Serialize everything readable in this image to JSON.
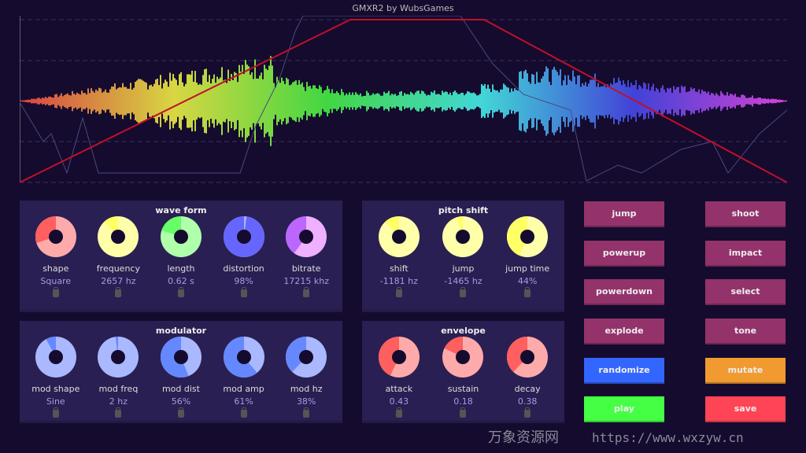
{
  "title": "GMXR2 by WubsGames",
  "panels": [
    {
      "id": "wave-form",
      "title": "wave form",
      "knobs": [
        {
          "label": "shape",
          "value": "Square",
          "fraction": 0.3,
          "color": "#ff5f5f",
          "light": "#ffaaaa"
        },
        {
          "label": "frequency",
          "value": "2657 hz",
          "fraction": 0.12,
          "color": "#ffff66",
          "light": "#ffffaa"
        },
        {
          "label": "length",
          "value": "0.62 s",
          "fraction": 0.2,
          "color": "#66ff66",
          "light": "#b0ffaa"
        },
        {
          "label": "distortion",
          "value": "98%",
          "fraction": 0.98,
          "color": "#6666ff",
          "light": "#aab0ff"
        },
        {
          "label": "bitrate",
          "value": "17215 khz",
          "fraction": 0.4,
          "color": "#bb66ff",
          "light": "#eeb0ff"
        }
      ]
    },
    {
      "id": "pitch-shift",
      "title": "pitch shift",
      "knobs": [
        {
          "label": "shift",
          "value": "-1181 hz",
          "fraction": 0.12,
          "color": "#ffff66",
          "light": "#ffffaa"
        },
        {
          "label": "jump",
          "value": "-1465 hz",
          "fraction": 0.05,
          "color": "#ffff66",
          "light": "#ffffaa"
        },
        {
          "label": "jump time",
          "value": "44%",
          "fraction": 0.44,
          "color": "#ffff66",
          "light": "#ffffaa"
        }
      ]
    },
    {
      "id": "modulator",
      "title": "modulator",
      "knobs": [
        {
          "label": "mod shape",
          "value": "Sine",
          "fraction": 0.08,
          "color": "#6688ff",
          "light": "#aab8ff"
        },
        {
          "label": "mod freq",
          "value": "2 hz",
          "fraction": 0.02,
          "color": "#6688ff",
          "light": "#aab8ff"
        },
        {
          "label": "mod dist",
          "value": "56%",
          "fraction": 0.56,
          "color": "#6688ff",
          "light": "#aab8ff"
        },
        {
          "label": "mod amp",
          "value": "61%",
          "fraction": 0.61,
          "color": "#6688ff",
          "light": "#aab8ff"
        },
        {
          "label": "mod hz",
          "value": "38%",
          "fraction": 0.38,
          "color": "#6688ff",
          "light": "#aab8ff"
        }
      ]
    },
    {
      "id": "envelope",
      "title": "envelope",
      "knobs": [
        {
          "label": "attack",
          "value": "0.43",
          "fraction": 0.43,
          "color": "#ff5f5f",
          "light": "#ffaaaa"
        },
        {
          "label": "sustain",
          "value": "0.18",
          "fraction": 0.18,
          "color": "#ff5f5f",
          "light": "#ffaaaa"
        },
        {
          "label": "decay",
          "value": "0.38",
          "fraction": 0.38,
          "color": "#ff5f5f",
          "light": "#ffaaaa"
        }
      ]
    }
  ],
  "buttons": [
    {
      "label": "jump",
      "color": "#94336b"
    },
    {
      "label": "shoot",
      "color": "#94336b"
    },
    {
      "label": "powerup",
      "color": "#94336b"
    },
    {
      "label": "impact",
      "color": "#94336b"
    },
    {
      "label": "powerdown",
      "color": "#94336b"
    },
    {
      "label": "select",
      "color": "#94336b"
    },
    {
      "label": "explode",
      "color": "#94336b"
    },
    {
      "label": "tone",
      "color": "#94336b"
    },
    {
      "label": "randomize",
      "color": "#3366ff"
    },
    {
      "label": "mutate",
      "color": "#f09a30"
    },
    {
      "label": "play",
      "color": "#44ff44"
    },
    {
      "label": "save",
      "color": "#ff4455"
    }
  ],
  "watermark": {
    "text": "万象资源网",
    "url": "https://www.wxzyw.cn"
  }
}
